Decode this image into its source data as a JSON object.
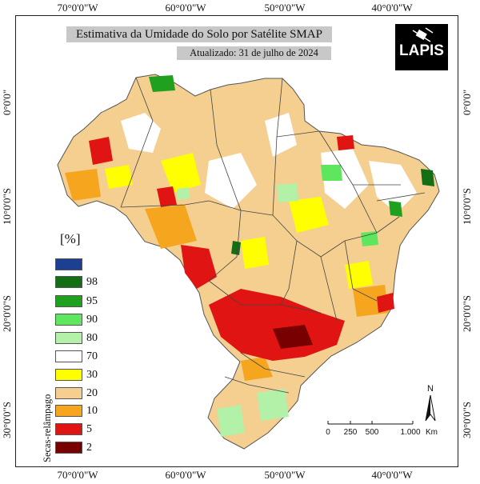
{
  "map": {
    "title": "Estimativa da Umidade do Solo por Satélite SMAP",
    "subtitle": "Atualizado: 31 de julho de 2024",
    "logo_text": "LAPIS",
    "colors": {
      "background": "#ffffff",
      "title_box": "#c8c8c8",
      "border": "#222222"
    },
    "coordinates": {
      "top": [
        "70°0'0\"W",
        "60°0'0\"W",
        "50°0'0\"W",
        "40°0'0\"W"
      ],
      "bottom": [
        "70°0'0\"W",
        "60°0'0\"W",
        "50°0'0\"W",
        "40°0'0\"W"
      ],
      "left": [
        "0°0'0\"",
        "10°0'0\"S",
        "20°0'0\"S",
        "30°0'0\"S"
      ],
      "right": [
        "0°0'0\"",
        "10°0'0\"S",
        "20°0'0\"S",
        "30°0'0\"S"
      ]
    },
    "legend": {
      "title": "[%]",
      "items": [
        {
          "label": "",
          "color": "#1c3f91"
        },
        {
          "label": "98",
          "color": "#146e14"
        },
        {
          "label": "95",
          "color": "#1fa11f"
        },
        {
          "label": "90",
          "color": "#5fe65f"
        },
        {
          "label": "80",
          "color": "#b3f0a8"
        },
        {
          "label": "70",
          "color": "#ffffff"
        },
        {
          "label": "30",
          "color": "#ffff00"
        },
        {
          "label": "20",
          "color": "#f5cf8f"
        },
        {
          "label": "10",
          "color": "#f5a51e"
        },
        {
          "label": "5",
          "color": "#e11414"
        },
        {
          "label": "2",
          "color": "#780000"
        }
      ],
      "side_label": "Secas-relâmpago"
    },
    "north_label": "N",
    "scale": {
      "ticks": [
        "0",
        "250",
        "500",
        "1.000"
      ],
      "unit": "Km"
    }
  }
}
